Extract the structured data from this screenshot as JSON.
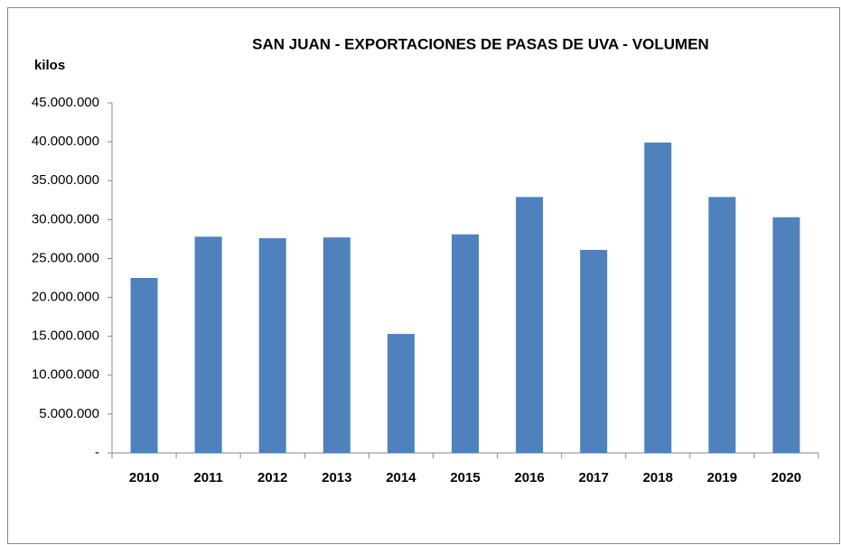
{
  "chart_data": {
    "type": "bar",
    "title": "SAN JUAN - EXPORTACIONES DE PASAS DE UVA - VOLUMEN",
    "y_label": "kilos",
    "categories": [
      "2010",
      "2011",
      "2012",
      "2013",
      "2014",
      "2015",
      "2016",
      "2017",
      "2018",
      "2019",
      "2020"
    ],
    "values": [
      22500000,
      27800000,
      27600000,
      27700000,
      15300000,
      28100000,
      32900000,
      26100000,
      39900000,
      32900000,
      30300000
    ],
    "color": "#4f81bd",
    "ylim": [
      0,
      45000000
    ],
    "yticks": [
      {
        "value": 0,
        "label": "-"
      },
      {
        "value": 5000000,
        "label": "5.000.000"
      },
      {
        "value": 10000000,
        "label": "10.000.000"
      },
      {
        "value": 15000000,
        "label": "15.000.000"
      },
      {
        "value": 20000000,
        "label": "20.000.000"
      },
      {
        "value": 25000000,
        "label": "25.000.000"
      },
      {
        "value": 30000000,
        "label": "30.000.000"
      },
      {
        "value": 35000000,
        "label": "35.000.000"
      },
      {
        "value": 40000000,
        "label": "40.000.000"
      },
      {
        "value": 45000000,
        "label": "45.000.000"
      }
    ],
    "grid": false
  }
}
